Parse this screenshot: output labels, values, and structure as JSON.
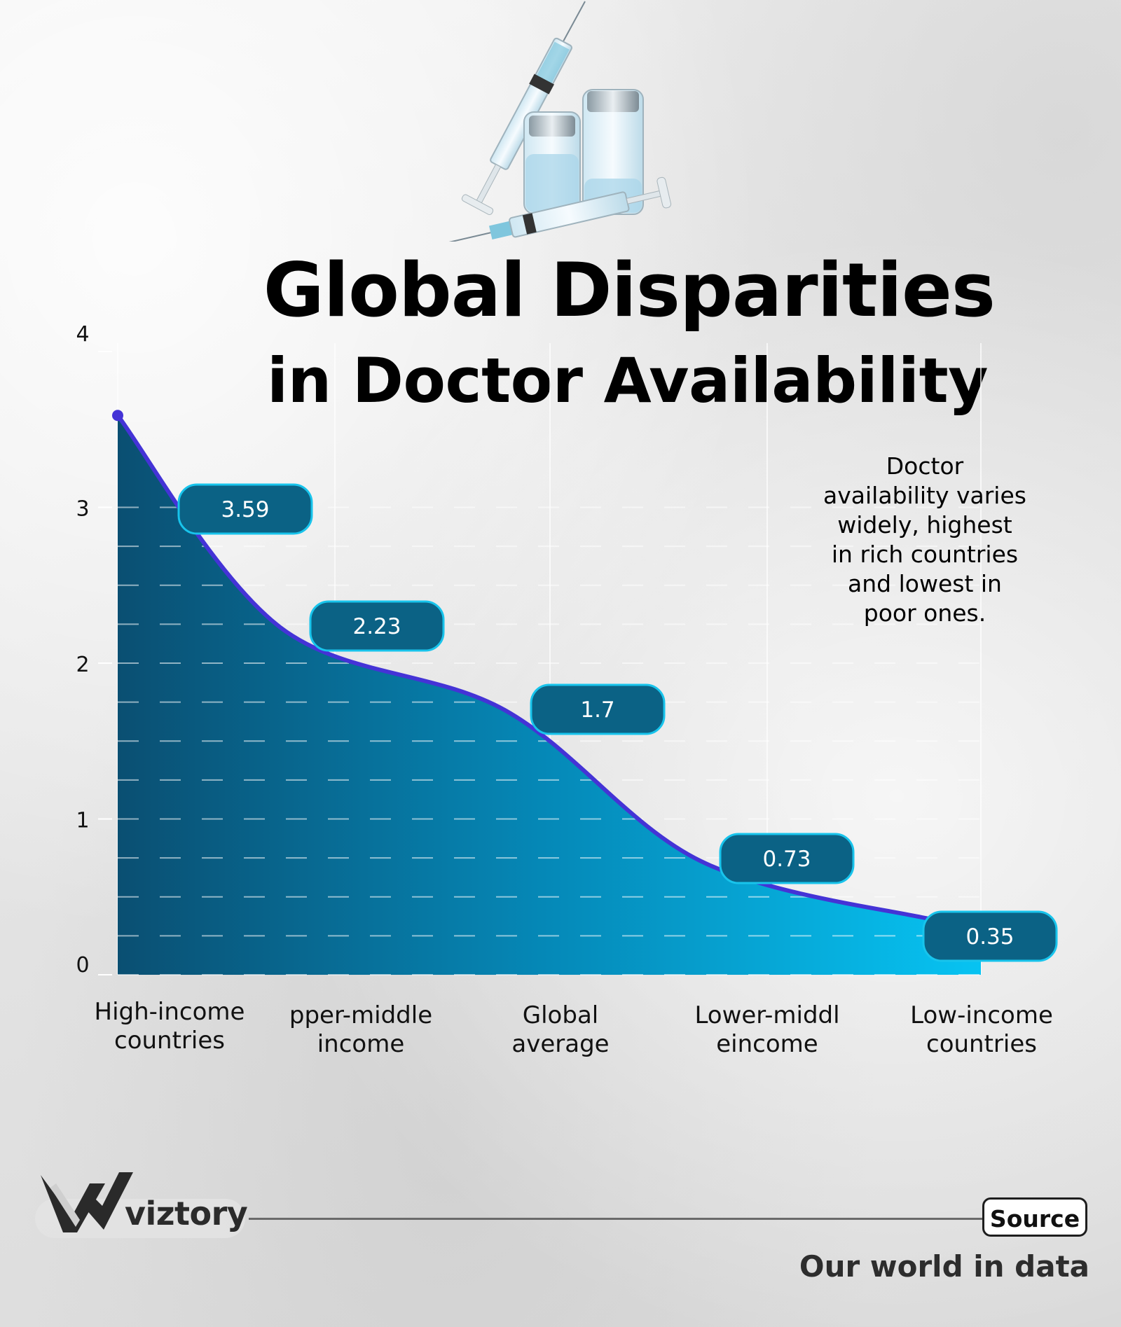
{
  "header": {
    "title_line1": "Global Disparities",
    "title_line2": "in Doctor Availability"
  },
  "annotation": "Doctor availability varies widely, highest in rich countries and lowest in poor ones.",
  "chart_data": {
    "type": "area",
    "title": "Global Disparities in Doctor Availability",
    "categories": [
      "High-income\ncountries",
      "pper-middle\nincome",
      "Global\naverage",
      "Lower-middl\neincome",
      "Low-income\ncountries"
    ],
    "values": [
      3.59,
      2.23,
      1.7,
      0.73,
      0.35
    ],
    "data_labels": [
      "3.59",
      "2.23",
      "1.7",
      "0.73",
      "0.35"
    ],
    "ylim": [
      0,
      4
    ],
    "y_ticks": [
      "0",
      "1",
      "2",
      "3",
      "4"
    ],
    "xlabel": "",
    "ylabel": "",
    "grid": "dashed horizontal",
    "legend": "none",
    "colors": {
      "fill_left": "#0a4f72",
      "fill_right": "#07c3f2",
      "line": "#4433d6",
      "label_bg": "#0b6285",
      "label_border": "#18c4ec"
    }
  },
  "footer": {
    "brand": "viztory",
    "source_label": "Source",
    "source_text": "Our world in data"
  }
}
